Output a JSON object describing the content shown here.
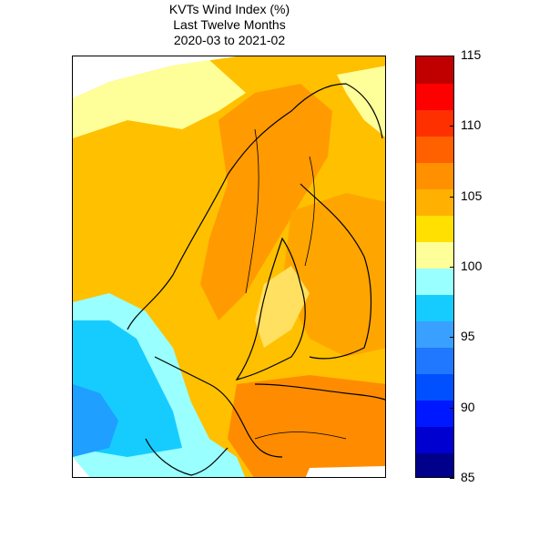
{
  "title": {
    "line1": "KVTs Wind Index (%)",
    "line2": "Last Twelve Months",
    "line3": "2020-03 to 2021-02"
  },
  "colorbar": {
    "min": 85,
    "max": 115,
    "step": 2,
    "tick_labels": [
      "115",
      "110",
      "105",
      "100",
      "95",
      "90",
      "85"
    ],
    "tick_values": [
      115,
      110,
      105,
      100,
      95,
      90,
      85
    ],
    "colors_bottom_to_top": [
      "#00008b",
      "#0000d0",
      "#0018ff",
      "#0050ff",
      "#1f78ff",
      "#3aa0ff",
      "#16ccff",
      "#99ffff",
      "#ffff99",
      "#ffe000",
      "#ffb000",
      "#ff9000",
      "#ff6000",
      "#ff3000",
      "#ff0000",
      "#c00000"
    ]
  },
  "map": {
    "region": "Scandinavia / Nordic countries",
    "dominant_color": "#ffc000",
    "high_color": "#ff9000",
    "low_color": "#1f9fff"
  }
}
